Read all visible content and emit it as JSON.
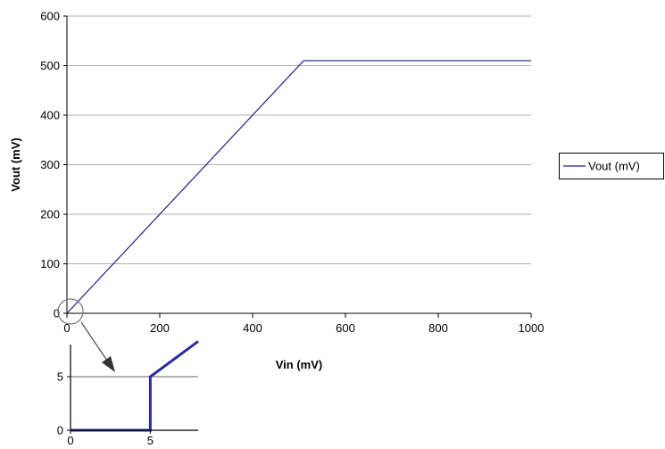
{
  "chart_data": [
    {
      "type": "line",
      "xlabel": "Vin (mV)",
      "ylabel": "Vout (mV)",
      "xlim": [
        0,
        1000
      ],
      "ylim": [
        0,
        600
      ],
      "xticks": [
        "0",
        "200",
        "400",
        "600",
        "800",
        "1000"
      ],
      "yticks": [
        "0",
        "100",
        "200",
        "300",
        "400",
        "500",
        "600"
      ],
      "grid": "horizontal",
      "legend_position": "right",
      "series": [
        {
          "name": "Vout (mV)",
          "color": "#1f1f8f",
          "x": [
            0,
            510,
            1000
          ],
          "y": [
            0,
            510,
            510
          ]
        }
      ]
    },
    {
      "type": "line",
      "description": "inset zoom near origin",
      "xlim": [
        0,
        8
      ],
      "ylim": [
        0,
        8
      ],
      "xticks": [
        "0",
        "5"
      ],
      "yticks": [
        "0",
        "5"
      ],
      "reference_line_y": 5,
      "series": [
        {
          "color": "#2b2b9a",
          "x": [
            0,
            5,
            5,
            8
          ],
          "y": [
            0,
            0,
            5,
            8.3
          ]
        }
      ]
    }
  ],
  "colors": {
    "grid": "#b0b0b0",
    "inset_reference": "#999999",
    "axis": "#000000"
  }
}
